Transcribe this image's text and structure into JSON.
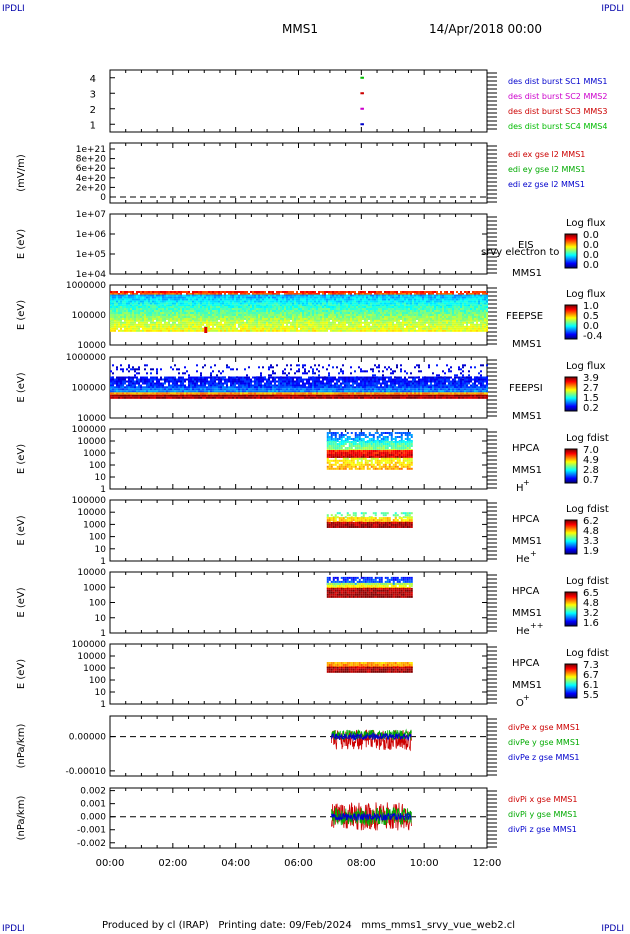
{
  "header": {
    "corner_label": "IPDLI",
    "spacecraft": "MMS1",
    "date_time": "14/Apr/2018 00:00"
  },
  "footer": {
    "text": "Produced by cl (IRAP)   Printing date: 09/Feb/2024   mms_mms1_srvy_vue_web2.cl"
  },
  "chart_data": [
    {
      "id": "panel-des-dist",
      "type": "scatter",
      "y_ticks": [
        "1",
        "2",
        "3",
        "4"
      ],
      "ylim": [
        0.5,
        4.5
      ],
      "legend": [
        {
          "text": "des dist burst SC1 MMS1",
          "color": "#0000cc"
        },
        {
          "text": "des dist burst SC2 MMS2",
          "color": "#cc00cc"
        },
        {
          "text": "des dist burst SC3 MMS3",
          "color": "#cc0000"
        },
        {
          "text": "des dist burst SC4 MMS4",
          "color": "#00bb00"
        }
      ],
      "series": [
        {
          "values": [
            [
              7.97,
              1
            ],
            [
              8.02,
              1
            ]
          ],
          "color": "#0000cc"
        },
        {
          "values": [
            [
              7.97,
              2
            ],
            [
              8.02,
              2
            ]
          ],
          "color": "#cc00cc"
        },
        {
          "values": [
            [
              7.97,
              3
            ],
            [
              8.02,
              3
            ]
          ],
          "color": "#cc0000"
        },
        {
          "values": [
            [
              7.97,
              4
            ],
            [
              8.02,
              4
            ]
          ],
          "color": "#00bb00"
        }
      ]
    },
    {
      "id": "panel-edi",
      "type": "line",
      "ylabel": "(mV/m)",
      "y_ticks": [
        "0",
        "2e+20",
        "4e+20",
        "6e+20",
        "8e+20",
        "1e+21"
      ],
      "ylim": [
        0,
        1e+21
      ],
      "legend": [
        {
          "text": "edi ex gse l2 MMS1",
          "color": "#cc0000"
        },
        {
          "text": "edi ey gse l2 MMS1",
          "color": "#00aa00"
        },
        {
          "text": "edi ez gse l2 MMS1",
          "color": "#0000cc"
        }
      ],
      "zero_line": true
    },
    {
      "id": "panel-eis",
      "type": "heatmap",
      "ylabel": "E (eV)",
      "y_ticks": [
        "1e+04",
        "1e+05",
        "1e+06",
        "1e+07"
      ],
      "instrument": "EIS",
      "species": "MMS1",
      "overlay_text": "srvy electron to",
      "colorbar": {
        "title": "Log flux",
        "ticks": [
          "0.0",
          "0.0",
          "0.0",
          "0.0"
        ]
      }
    },
    {
      "id": "panel-feepse",
      "type": "heatmap",
      "ylabel": "E (eV)",
      "y_ticks": [
        "10000",
        "100000",
        "1000000"
      ],
      "instrument": "FEEPSE",
      "species": "MMS1",
      "colorbar": {
        "title": "Log flux",
        "ticks": [
          "1.0",
          "0.5",
          "0.0",
          "-0.4"
        ]
      },
      "time_range": [
        0,
        12
      ]
    },
    {
      "id": "panel-feepsi",
      "type": "heatmap",
      "ylabel": "E (eV)",
      "y_ticks": [
        "10000",
        "100000",
        "1000000"
      ],
      "instrument": "FEEPSI",
      "species": "MMS1",
      "colorbar": {
        "title": "Log flux",
        "ticks": [
          "3.9",
          "2.7",
          "1.5",
          "0.2"
        ]
      },
      "time_range": [
        0,
        12
      ]
    },
    {
      "id": "panel-hpca-h",
      "type": "heatmap",
      "ylabel": "E (eV)",
      "y_ticks": [
        "1",
        "10",
        "100",
        "1000",
        "10000",
        "100000"
      ],
      "instrument": "HPCA",
      "species": "MMS1",
      "ion": "H",
      "ion_charge": "+",
      "colorbar": {
        "title": "Log fdist",
        "ticks": [
          "7.0",
          "4.9",
          "2.8",
          "0.7"
        ]
      },
      "time_range": [
        6.9,
        9.6
      ]
    },
    {
      "id": "panel-hpca-he",
      "type": "heatmap",
      "ylabel": "E (eV)",
      "y_ticks": [
        "1",
        "10",
        "100",
        "1000",
        "10000",
        "100000"
      ],
      "instrument": "HPCA",
      "species": "MMS1",
      "ion": "He",
      "ion_charge": "+",
      "colorbar": {
        "title": "Log fdist",
        "ticks": [
          "6.2",
          "4.8",
          "3.3",
          "1.9"
        ]
      },
      "time_range": [
        6.9,
        9.6
      ]
    },
    {
      "id": "panel-hpca-hepp",
      "type": "heatmap",
      "ylabel": "E (eV)",
      "y_ticks": [
        "1",
        "10",
        "100",
        "1000",
        "10000"
      ],
      "instrument": "HPCA",
      "species": "MMS1",
      "ion": "He",
      "ion_charge": "++",
      "colorbar": {
        "title": "Log fdist",
        "ticks": [
          "6.5",
          "4.8",
          "3.2",
          "1.6"
        ]
      },
      "time_range": [
        6.9,
        9.6
      ]
    },
    {
      "id": "panel-hpca-o",
      "type": "heatmap",
      "ylabel": "E (eV)",
      "y_ticks": [
        "1",
        "10",
        "100",
        "1000",
        "10000",
        "100000"
      ],
      "instrument": "HPCA",
      "species": "MMS1",
      "ion": "O",
      "ion_charge": "+",
      "colorbar": {
        "title": "Log fdist",
        "ticks": [
          "7.3",
          "6.7",
          "6.1",
          "5.5"
        ]
      },
      "time_range": [
        6.9,
        9.6
      ]
    },
    {
      "id": "panel-divpe",
      "type": "line",
      "ylabel": "(nPa/km)",
      "y_ticks": [
        "-0.00010",
        "0.00000"
      ],
      "ylim": [
        -0.000115,
        6e-05
      ],
      "legend": [
        {
          "text": "divPe x gse MMS1",
          "color": "#cc0000"
        },
        {
          "text": "divPe y gse MMS1",
          "color": "#00aa00"
        },
        {
          "text": "divPe z gse MMS1",
          "color": "#0000cc"
        }
      ],
      "zero_line": true,
      "time_range": [
        7.05,
        9.6
      ]
    },
    {
      "id": "panel-divpi",
      "type": "line",
      "ylabel": "(nPa/km)",
      "y_ticks": [
        "-0.002",
        "-0.001",
        "0.000",
        "0.001",
        "0.002"
      ],
      "ylim": [
        -0.0024,
        0.0022
      ],
      "legend": [
        {
          "text": "divPi x gse MMS1",
          "color": "#cc0000"
        },
        {
          "text": "divPi y gse MMS1",
          "color": "#00aa00"
        },
        {
          "text": "divPi z gse MMS1",
          "color": "#0000cc"
        }
      ],
      "zero_line": true,
      "time_range": [
        7.05,
        9.6
      ]
    }
  ],
  "x_axis": {
    "ticks": [
      "00:00",
      "02:00",
      "04:00",
      "06:00",
      "08:00",
      "10:00",
      "12:00"
    ],
    "xlim": [
      0,
      12
    ]
  }
}
